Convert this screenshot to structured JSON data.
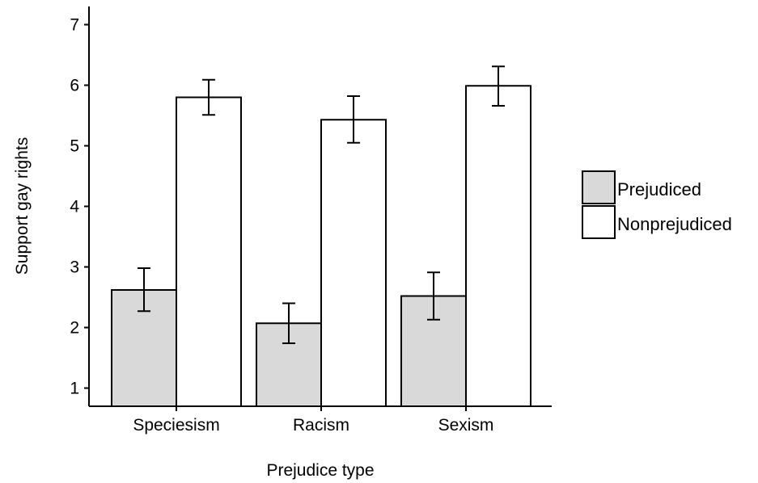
{
  "chart_data": {
    "type": "bar",
    "title": "",
    "xlabel": "Prejudice type",
    "ylabel": "Support gay rights",
    "categories": [
      "Speciesism",
      "Racism",
      "Sexism"
    ],
    "ylim": [
      0.7,
      7.3
    ],
    "yticks": [
      1,
      2,
      3,
      4,
      5,
      6,
      7
    ],
    "series": [
      {
        "name": "Prejudiced",
        "values": [
          2.62,
          2.07,
          2.52
        ],
        "err_low": [
          2.27,
          1.74,
          2.13
        ],
        "err_high": [
          2.98,
          2.4,
          2.91
        ],
        "color": "#d9d9d9"
      },
      {
        "name": "Nonprejudiced",
        "values": [
          5.8,
          5.43,
          5.99
        ],
        "err_low": [
          5.51,
          5.05,
          5.66
        ],
        "err_high": [
          6.09,
          5.82,
          6.31
        ],
        "color": "#ffffff"
      }
    ],
    "grid": false,
    "legend": "right"
  }
}
